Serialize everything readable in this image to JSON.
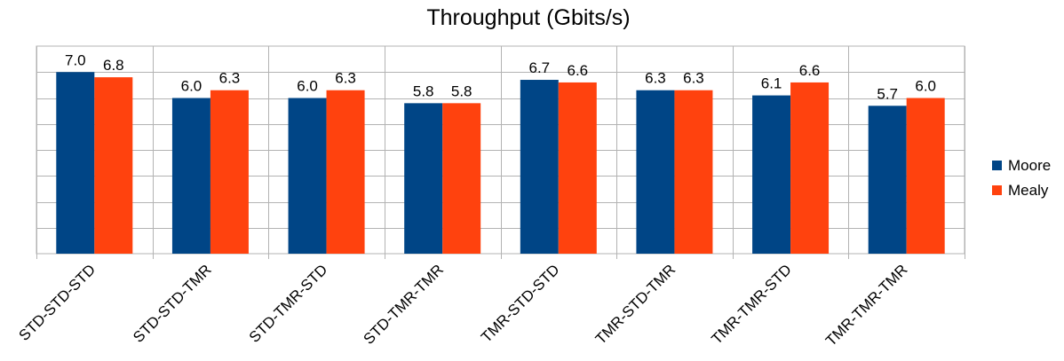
{
  "chart_data": {
    "type": "bar",
    "title": "Throughput (Gbits/s)",
    "categories": [
      "STD-STD-STD",
      "STD-STD-TMR",
      "STD-TMR-STD",
      "STD-TMR-TMR",
      "TMR-STD-STD",
      "TMR-STD-TMR",
      "TMR-TMR-STD",
      "TMR-TMR-TMR"
    ],
    "series": [
      {
        "name": "Moore",
        "color": "#004586",
        "values": [
          7.0,
          6.0,
          6.0,
          5.8,
          6.7,
          6.3,
          6.1,
          5.7
        ],
        "labels": [
          "7.0",
          "6.0",
          "6.0",
          "5.8",
          "6.7",
          "6.3",
          "6.1",
          "5.7"
        ]
      },
      {
        "name": "Mealy",
        "color": "#ff420e",
        "values": [
          6.8,
          6.3,
          6.3,
          5.8,
          6.6,
          6.3,
          6.6,
          6.0
        ],
        "labels": [
          "6.8",
          "6.3",
          "6.3",
          "5.8",
          "6.6",
          "6.3",
          "6.6",
          "6.0"
        ]
      }
    ],
    "ylim": [
      0,
      8
    ],
    "y_gridline_step": 1,
    "y_tick_labels_shown": false,
    "grid": true,
    "legend_position": "right",
    "xlabel": "",
    "ylabel": ""
  }
}
